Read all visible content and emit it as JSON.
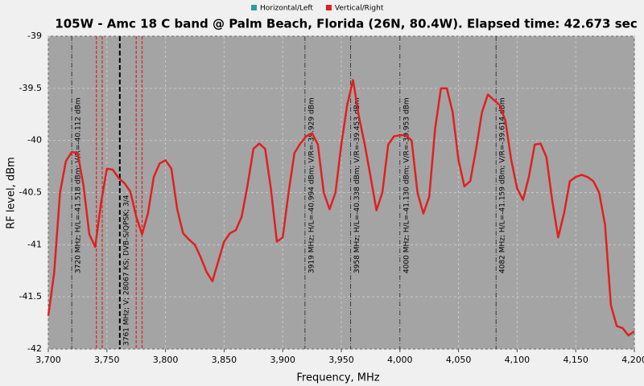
{
  "chart_data": {
    "type": "line",
    "title": "105W - Amc 18 C band @ Palm Beach, Florida (26N, 80.4W). Elapsed time: 42.673 sec",
    "xlabel": "Frequency, MHz",
    "ylabel": "RF level, dBm",
    "xlim": [
      3700,
      4200
    ],
    "ylim": [
      -42,
      -39
    ],
    "xticks": [
      {
        "value": 3700,
        "label": "3,700"
      },
      {
        "value": 3750,
        "label": "3,750"
      },
      {
        "value": 3800,
        "label": "3,800"
      },
      {
        "value": 3850,
        "label": "3,850"
      },
      {
        "value": 3900,
        "label": "3,900"
      },
      {
        "value": 3950,
        "label": "3,950"
      },
      {
        "value": 4000,
        "label": "4,000"
      },
      {
        "value": 4050,
        "label": "4,050"
      },
      {
        "value": 4100,
        "label": "4,100"
      },
      {
        "value": 4150,
        "label": "4,150"
      },
      {
        "value": 4200,
        "label": "4,200"
      }
    ],
    "yticks": [
      -39,
      -39.5,
      -40,
      -40.5,
      -41,
      -41.5,
      -42
    ],
    "grid": true,
    "x": [
      3700,
      3705,
      3710,
      3715,
      3720,
      3725,
      3730,
      3735,
      3740,
      3745,
      3750,
      3755,
      3760,
      3765,
      3770,
      3775,
      3780,
      3785,
      3790,
      3795,
      3800,
      3805,
      3810,
      3815,
      3820,
      3825,
      3830,
      3835,
      3840,
      3845,
      3850,
      3855,
      3860,
      3865,
      3870,
      3875,
      3880,
      3885,
      3890,
      3895,
      3900,
      3905,
      3910,
      3915,
      3920,
      3925,
      3930,
      3935,
      3940,
      3945,
      3950,
      3955,
      3960,
      3965,
      3970,
      3975,
      3980,
      3985,
      3990,
      3995,
      4000,
      4005,
      4010,
      4015,
      4020,
      4025,
      4030,
      4035,
      4040,
      4045,
      4050,
      4055,
      4060,
      4065,
      4070,
      4075,
      4080,
      4085,
      4090,
      4095,
      4100,
      4105,
      4110,
      4115,
      4120,
      4125,
      4130,
      4135,
      4140,
      4145,
      4150,
      4155,
      4160,
      4165,
      4170,
      4175,
      4180,
      4185,
      4190,
      4195,
      4200
    ],
    "series": [
      {
        "name": "Horizontal/Left",
        "color": "#2a9d9d",
        "values": [
          null,
          null,
          null,
          null,
          null,
          null,
          null,
          null,
          null,
          null,
          null,
          null,
          null,
          null,
          null,
          null,
          null,
          null,
          null,
          null,
          null,
          null,
          null,
          null,
          null,
          null,
          null,
          null,
          null,
          null,
          null,
          null,
          null,
          null,
          null,
          null,
          null,
          null,
          null,
          null,
          null,
          null,
          null,
          null,
          null,
          null,
          null,
          null,
          null,
          null,
          null,
          null,
          null,
          null,
          null,
          null,
          null,
          null,
          null,
          null,
          null,
          null,
          null,
          null,
          null,
          null,
          null,
          null,
          null,
          null,
          null,
          null,
          null,
          null,
          null,
          null,
          null,
          null,
          null,
          null,
          null,
          null,
          null,
          null,
          null,
          null,
          null,
          null,
          null,
          null,
          null,
          null,
          null,
          null,
          null,
          null,
          null,
          null,
          null,
          null,
          null
        ]
      },
      {
        "name": "Vertical/Right",
        "color": "#e02020",
        "values": [
          -41.68,
          -41.27,
          -40.5,
          -40.2,
          -40.11,
          -40.12,
          -40.43,
          -40.9,
          -41.02,
          -40.6,
          -40.27,
          -40.28,
          -40.36,
          -40.41,
          -40.49,
          -40.73,
          -40.9,
          -40.7,
          -40.35,
          -40.22,
          -40.19,
          -40.27,
          -40.66,
          -40.89,
          -40.95,
          -41.0,
          -41.12,
          -41.26,
          -41.35,
          -41.16,
          -40.97,
          -40.89,
          -40.86,
          -40.73,
          -40.43,
          -40.08,
          -40.03,
          -40.08,
          -40.47,
          -40.97,
          -40.93,
          -40.5,
          -40.12,
          -40.03,
          -39.96,
          -39.93,
          -40.04,
          -40.5,
          -40.66,
          -40.5,
          -40.04,
          -39.66,
          -39.42,
          -39.77,
          -40.04,
          -40.35,
          -40.67,
          -40.5,
          -40.04,
          -39.96,
          -39.95,
          -39.95,
          -40.0,
          -40.5,
          -40.7,
          -40.54,
          -39.89,
          -39.5,
          -39.5,
          -39.73,
          -40.19,
          -40.44,
          -40.39,
          -40.08,
          -39.73,
          -39.56,
          -39.61,
          -39.66,
          -39.81,
          -40.19,
          -40.46,
          -40.57,
          -40.35,
          -40.04,
          -40.03,
          -40.16,
          -40.58,
          -40.93,
          -40.7,
          -40.39,
          -40.35,
          -40.33,
          -40.35,
          -40.39,
          -40.5,
          -40.81,
          -41.58,
          -41.78,
          -41.8,
          -41.87,
          -41.83
        ]
      }
    ],
    "annotations": [
      {
        "x": 3720,
        "label": "3720 MHz; H/L=-41.518 dBm; V/R=-40.112 dBm"
      },
      {
        "x": 3919,
        "label": "3919 MHz; H/L=-40.994 dBm; V/R=-39.929 dBm"
      },
      {
        "x": 3958,
        "label": "3958 MHz; H/L=-40.338 dBm; V/R=-39.453 dBm"
      },
      {
        "x": 4000,
        "label": "4000 MHz; H/L=-41.130 dBm; V/R=-39.953 dBm"
      },
      {
        "x": 4082,
        "label": "4082 MHz; H/L=-41.159 dBm; V/R=-39.614 dBm"
      }
    ],
    "carrier": {
      "x": 3761,
      "label": "3761 MHz; V; 28067 KS; DVB-S/QPSK; 3/4",
      "edges": [
        3741,
        3746,
        3775,
        3780
      ]
    }
  }
}
